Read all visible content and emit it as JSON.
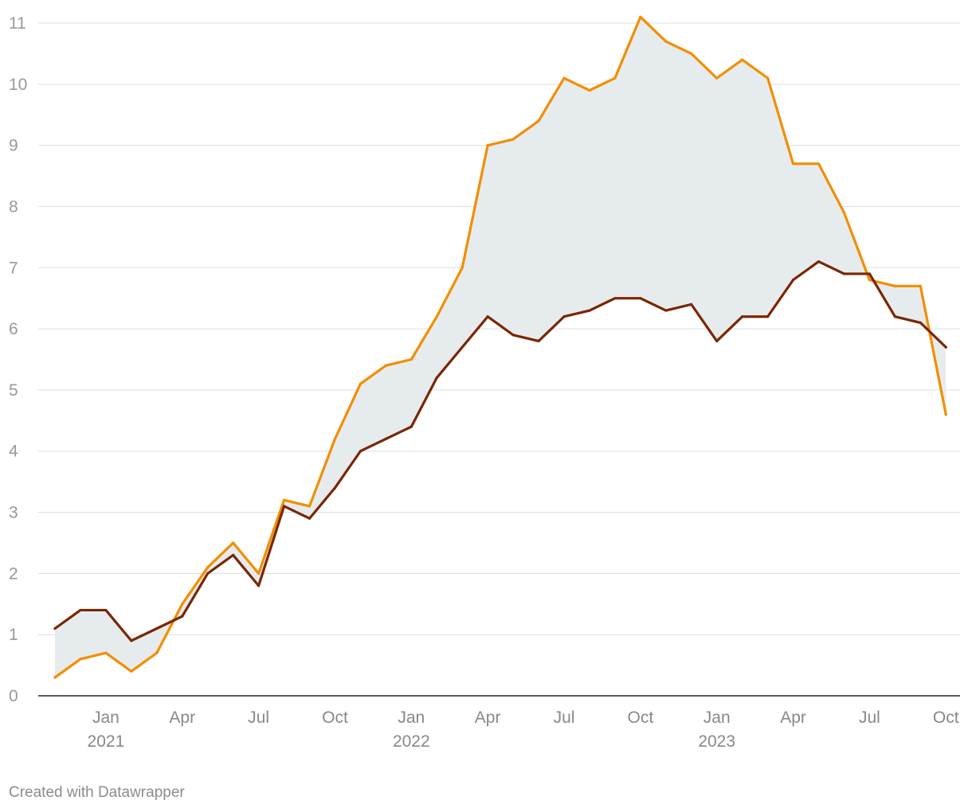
{
  "chart_data": {
    "type": "line",
    "x": [
      "2020-11",
      "2020-12",
      "2021-01",
      "2021-02",
      "2021-03",
      "2021-04",
      "2021-05",
      "2021-06",
      "2021-07",
      "2021-08",
      "2021-09",
      "2021-10",
      "2021-11",
      "2021-12",
      "2022-01",
      "2022-02",
      "2022-03",
      "2022-04",
      "2022-05",
      "2022-06",
      "2022-07",
      "2022-08",
      "2022-09",
      "2022-10",
      "2022-11",
      "2022-12",
      "2023-01",
      "2023-02",
      "2023-03",
      "2023-04",
      "2023-05",
      "2023-06",
      "2023-07",
      "2023-08",
      "2023-09",
      "2023-10"
    ],
    "series": [
      {
        "color": "#f28e00",
        "values": [
          0.3,
          0.6,
          0.7,
          0.4,
          0.7,
          1.5,
          2.1,
          2.5,
          2.0,
          3.2,
          3.1,
          4.2,
          5.1,
          5.4,
          5.5,
          6.2,
          7.0,
          9.0,
          9.1,
          9.4,
          10.1,
          9.9,
          10.1,
          11.1,
          10.7,
          10.5,
          10.1,
          10.4,
          10.1,
          8.7,
          8.7,
          7.9,
          6.8,
          6.7,
          6.7,
          4.6
        ]
      },
      {
        "color": "#7a2600",
        "values": [
          1.1,
          1.4,
          1.4,
          0.9,
          1.1,
          1.3,
          2.0,
          2.3,
          1.8,
          3.1,
          2.9,
          3.4,
          4.0,
          4.2,
          4.4,
          5.2,
          5.7,
          6.2,
          5.9,
          5.8,
          6.2,
          6.3,
          6.5,
          6.5,
          6.3,
          6.4,
          5.8,
          6.2,
          6.2,
          6.8,
          7.1,
          6.9,
          6.9,
          6.2,
          6.1,
          5.7
        ]
      }
    ],
    "area_between_series": {
      "fill": "#e6ecee"
    },
    "ylim": [
      0,
      11
    ],
    "y_ticks": [
      0,
      1,
      2,
      3,
      4,
      5,
      6,
      7,
      8,
      9,
      10,
      11
    ],
    "x_ticks": [
      {
        "x": "2021-01",
        "month": "Jan",
        "year": "2021"
      },
      {
        "x": "2021-04",
        "month": "Apr",
        "year": ""
      },
      {
        "x": "2021-07",
        "month": "Jul",
        "year": ""
      },
      {
        "x": "2021-10",
        "month": "Oct",
        "year": ""
      },
      {
        "x": "2022-01",
        "month": "Jan",
        "year": "2022"
      },
      {
        "x": "2022-04",
        "month": "Apr",
        "year": ""
      },
      {
        "x": "2022-07",
        "month": "Jul",
        "year": ""
      },
      {
        "x": "2022-10",
        "month": "Oct",
        "year": ""
      },
      {
        "x": "2023-01",
        "month": "Jan",
        "year": "2023"
      },
      {
        "x": "2023-04",
        "month": "Apr",
        "year": ""
      },
      {
        "x": "2023-07",
        "month": "Jul",
        "year": ""
      },
      {
        "x": "2023-10",
        "month": "Oct",
        "year": ""
      }
    ],
    "title": "",
    "xlabel": "",
    "ylabel": "",
    "grid": true
  },
  "footer": {
    "credit": "Created with Datawrapper"
  }
}
